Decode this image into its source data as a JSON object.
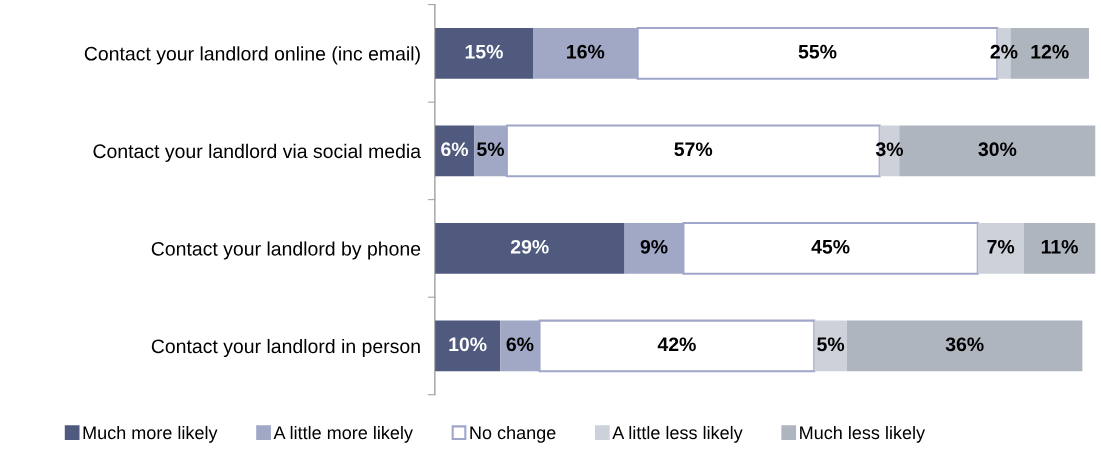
{
  "chart_data": {
    "type": "bar",
    "orientation": "horizontal",
    "stacked": true,
    "legend": "bottom",
    "grid": false,
    "categories": [
      "Contact your landlord online (inc email)",
      "Contact your landlord via social media",
      "Contact your landlord by phone",
      "Contact your landlord in person"
    ],
    "series": [
      {
        "name": "Much more likely",
        "color": "#4f5a7e",
        "values": [
          15,
          6,
          29,
          10
        ],
        "value_labels": [
          "15%",
          "6%",
          "29%",
          "10%"
        ]
      },
      {
        "name": "A little more likely",
        "color": "#a0a8c6",
        "values": [
          16,
          5,
          9,
          6
        ],
        "value_labels": [
          "16%",
          "5%",
          "9%",
          "6%"
        ]
      },
      {
        "name": "No change",
        "color": "#ffffff",
        "values": [
          55,
          57,
          45,
          42
        ],
        "value_labels": [
          "55%",
          "57%",
          "45%",
          "42%"
        ]
      },
      {
        "name": "A little less likely",
        "color": "#cdd1d9",
        "values": [
          2,
          3,
          7,
          5
        ],
        "value_labels": [
          "2%",
          "3%",
          "7%",
          "5%"
        ]
      },
      {
        "name": "Much less likely",
        "color": "#aeb5bf",
        "values": [
          12,
          30,
          11,
          36
        ],
        "value_labels": [
          "12%",
          "30%",
          "11%",
          "36%"
        ]
      }
    ]
  }
}
